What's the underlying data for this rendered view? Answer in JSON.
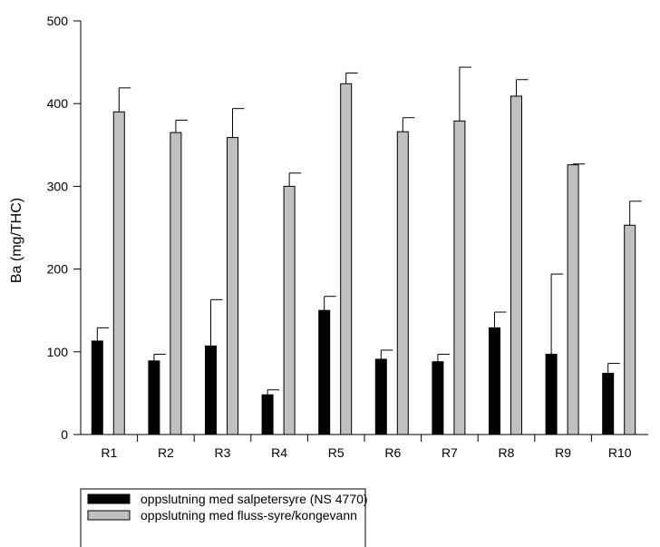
{
  "chart_data": {
    "type": "bar",
    "title": "",
    "xlabel": "",
    "ylabel": "Ba (mg/THC)",
    "ylim": [
      0,
      500
    ],
    "yticks": [
      "0",
      "100",
      "200",
      "300",
      "400",
      "500"
    ],
    "categories": [
      "R1",
      "R2",
      "R3",
      "R4",
      "R5",
      "R6",
      "R7",
      "R8",
      "R9",
      "R10"
    ],
    "error_bars": "upper",
    "grid": false,
    "legend_position": "bottom-left",
    "series": [
      {
        "name": "oppslutning med salpetersyre (NS 4770)",
        "color": "#000000",
        "values": [
          113,
          89,
          107,
          48,
          150,
          91,
          88,
          129,
          97,
          74
        ],
        "errors": [
          16,
          8,
          56,
          6,
          17,
          11,
          9,
          19,
          97,
          12
        ]
      },
      {
        "name": "oppslutning med fluss-syre/kongevann",
        "color": "#c0c0c0",
        "values": [
          390,
          365,
          359,
          300,
          424,
          366,
          379,
          409,
          326,
          253
        ],
        "errors": [
          29,
          15,
          35,
          16,
          13,
          17,
          65,
          20,
          1,
          29
        ]
      }
    ]
  }
}
